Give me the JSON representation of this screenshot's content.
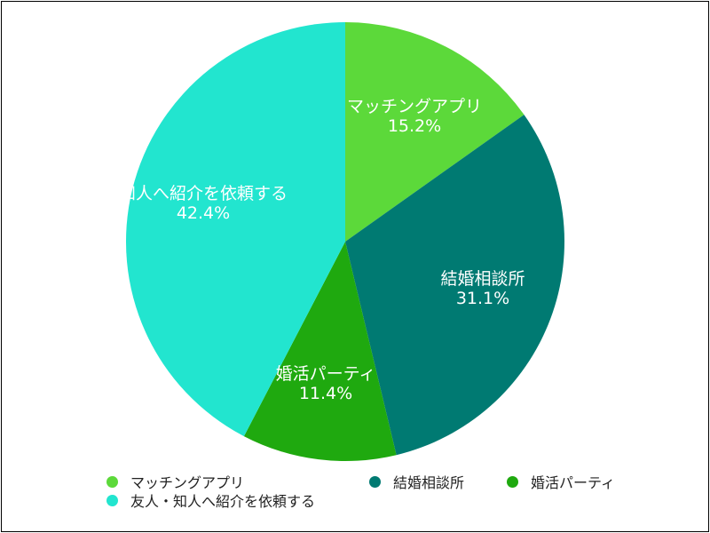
{
  "chart_data": {
    "type": "pie",
    "title": "",
    "categories": [
      "マッチングアプリ",
      "結婚相談所",
      "婚活パーティ",
      "知人へ紹介を依頼する"
    ],
    "values": [
      15.2,
      31.1,
      11.4,
      42.4
    ],
    "value_labels": [
      "15.2%",
      "31.1%",
      "11.4%",
      "42.4%"
    ],
    "colors": [
      "#5cd93a",
      "#007a72",
      "#1fa90f",
      "#22e5cf"
    ],
    "start_angle": "12 o'clock",
    "direction": "clockwise"
  },
  "legend": {
    "placement": "bottom",
    "items": [
      {
        "label": "マッチングアプリ",
        "color": "#5cd93a"
      },
      {
        "label": "結婚相談所",
        "color": "#007a72"
      },
      {
        "label": "婚活パーティ",
        "color": "#1fa90f"
      },
      {
        "label": "友人・知人へ紹介を依頼する",
        "color": "#22e5cf"
      }
    ]
  }
}
